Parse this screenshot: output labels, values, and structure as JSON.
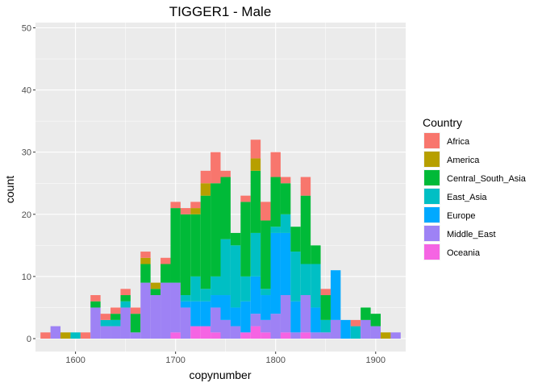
{
  "chart_data": {
    "type": "bar",
    "stacked": true,
    "title": "TIGGER1 - Male",
    "xlabel": "copynumber",
    "ylabel": "count",
    "bins": [
      1570,
      1580,
      1590,
      1600,
      1610,
      1620,
      1630,
      1640,
      1650,
      1660,
      1670,
      1680,
      1690,
      1700,
      1710,
      1720,
      1730,
      1740,
      1750,
      1760,
      1770,
      1780,
      1790,
      1800,
      1810,
      1820,
      1830,
      1840,
      1850,
      1860,
      1870,
      1880,
      1890,
      1900,
      1910,
      1920
    ],
    "bin_width": 10,
    "x_ticks": [
      1600,
      1700,
      1800,
      1900
    ],
    "y_ticks": [
      0,
      10,
      20,
      30,
      40,
      50
    ],
    "xlim": [
      1560,
      1930
    ],
    "ylim": [
      0,
      51
    ],
    "grid": true,
    "legend_position": "right",
    "legend_title": "Country",
    "series": [
      {
        "name": "Africa",
        "color": "#F8766D",
        "values": [
          1,
          0,
          0,
          0,
          1,
          1,
          1,
          1,
          1,
          1,
          1,
          0,
          1,
          1,
          1,
          1,
          2,
          5,
          1,
          0,
          1,
          3,
          3,
          4,
          1,
          0,
          3,
          0,
          1,
          0,
          0,
          1,
          0,
          0,
          0,
          0
        ]
      },
      {
        "name": "America",
        "color": "#B79F00",
        "values": [
          0,
          0,
          1,
          0,
          0,
          0,
          0,
          0,
          0,
          0,
          1,
          1,
          0,
          0,
          0,
          1,
          2,
          0,
          0,
          0,
          0,
          2,
          0,
          0,
          0,
          0,
          0,
          0,
          0,
          0,
          0,
          0,
          0,
          0,
          1,
          0
        ]
      },
      {
        "name": "Central_South_Asia",
        "color": "#00BA38",
        "values": [
          0,
          0,
          0,
          0,
          0,
          1,
          0,
          1,
          1,
          3,
          3,
          1,
          3,
          12,
          13,
          10,
          15,
          15,
          10,
          2,
          12,
          10,
          11,
          8,
          5,
          4,
          11,
          3,
          4,
          0,
          0,
          0,
          2,
          2,
          0,
          0
        ]
      },
      {
        "name": "East_Asia",
        "color": "#00BFC4",
        "values": [
          0,
          0,
          0,
          1,
          0,
          0,
          1,
          1,
          1,
          0,
          0,
          0,
          0,
          0,
          1,
          4,
          2,
          3,
          9,
          10,
          4,
          7,
          1,
          1,
          3,
          8,
          5,
          7,
          2,
          0,
          0,
          2,
          0,
          0,
          0,
          0
        ]
      },
      {
        "name": "Europe",
        "color": "#00A9FF",
        "values": [
          0,
          0,
          0,
          0,
          0,
          0,
          0,
          0,
          0,
          0,
          0,
          0,
          0,
          0,
          1,
          4,
          4,
          2,
          4,
          3,
          5,
          6,
          4,
          13,
          10,
          5,
          0,
          4,
          0,
          8,
          3,
          0,
          0,
          0,
          0,
          0
        ]
      },
      {
        "name": "Middle_East",
        "color": "#9E82F5",
        "values": [
          0,
          2,
          0,
          0,
          0,
          5,
          2,
          2,
          5,
          1,
          9,
          7,
          9,
          8,
          5,
          0,
          0,
          4,
          3,
          2,
          0,
          2,
          2,
          4,
          6,
          1,
          6,
          1,
          1,
          3,
          0,
          0,
          3,
          2,
          0,
          1
        ]
      },
      {
        "name": "Oceania",
        "color": "#F564E3",
        "values": [
          0,
          0,
          0,
          0,
          0,
          0,
          0,
          0,
          0,
          0,
          0,
          0,
          0,
          1,
          0,
          2,
          2,
          1,
          0,
          0,
          1,
          2,
          1,
          0,
          1,
          0,
          1,
          0,
          0,
          0,
          0,
          0,
          0,
          0,
          0,
          0
        ]
      }
    ]
  }
}
